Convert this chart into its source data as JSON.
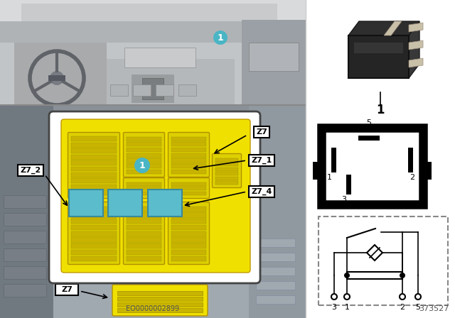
{
  "bg_color": "#ffffff",
  "yellow_color": "#f0e000",
  "yellow_dark": "#c8bb00",
  "blue_relay_color": "#5bbccc",
  "blue_relay_edge": "#3a8a9a",
  "label_bg": "#ffffff",
  "label_edge": "#000000",
  "teal_circle": "#4ab5c4",
  "part_number": "EO0000002899",
  "diagram_number": "373527",
  "figure_label": "1",
  "car_top_bg": "#b8bcc0",
  "car_bottom_bg": "#9aa0a8",
  "white_box_bg": "#f5f5f5",
  "panel_separator_color": "#888888",
  "relay_body_color": "#1e1e1e",
  "relay_pin_color": "#c8a060",
  "circuit_dash_color": "#888888",
  "fuse_slat_color": "#c8b400",
  "fuse_slat_edge": "#a09000"
}
